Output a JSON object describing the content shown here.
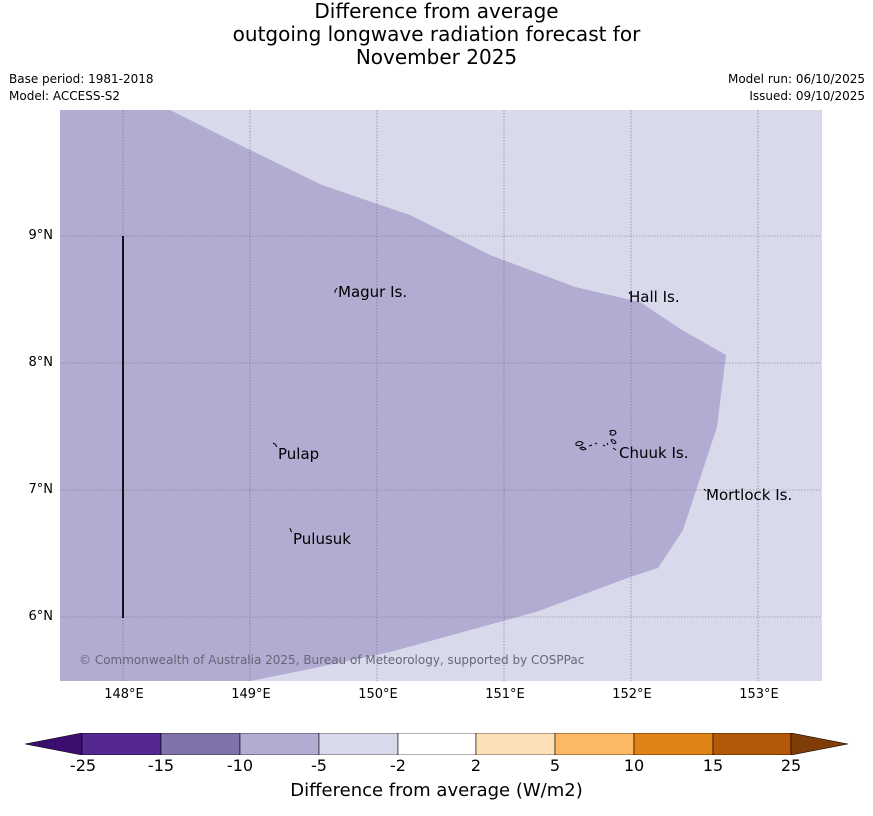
{
  "title_lines": [
    "Difference from average",
    "outgoing longwave radiation forecast for",
    "November 2025"
  ],
  "base_period": "Base period: 1981-2018",
  "model": "Model: ACCESS-S2",
  "model_run": "Model run: 06/10/2025",
  "issued": "Issued: 09/10/2025",
  "map": {
    "lat_labels": [
      "9°N",
      "8°N",
      "7°N",
      "6°N"
    ],
    "lon_labels": [
      "148°E",
      "149°E",
      "150°E",
      "151°E",
      "152°E",
      "153°E"
    ],
    "places": [
      "Magur Is.",
      "Hall Is.",
      "Pulap",
      "Chuuk Is.",
      "Mortlock Is.",
      "Pulusuk"
    ],
    "copyright": "© Commonwealth of Australia 2025, Bureau of Meteorology, supported by COSPPac"
  },
  "legend": {
    "ticks": [
      "-25",
      "-15",
      "-10",
      "-5",
      "-2",
      "2",
      "5",
      "10",
      "15",
      "25"
    ],
    "colors": [
      "#3b0f6f",
      "#54278f",
      "#8073ac",
      "#b2abd2",
      "#d8daeb",
      "#ffffff",
      "#fee0b6",
      "#fdb863",
      "#e08214",
      "#b35806",
      "#7f3b08"
    ],
    "title": "Difference from average (W/m2)"
  }
}
